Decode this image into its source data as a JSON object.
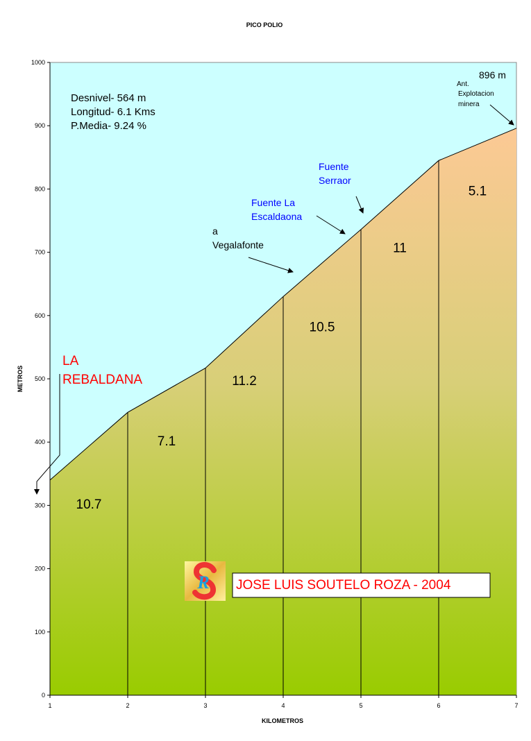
{
  "chart_data": {
    "type": "area",
    "title": "PICO POLIO",
    "xlabel": "KILOMETROS",
    "ylabel": "METROS",
    "xlim": [
      1,
      7
    ],
    "ylim": [
      0,
      1000
    ],
    "x_ticks": [
      "1",
      "2",
      "3",
      "4",
      "5",
      "6",
      "7"
    ],
    "y_ticks": [
      "0",
      "100",
      "200",
      "300",
      "400",
      "500",
      "600",
      "700",
      "800",
      "900",
      "1000"
    ],
    "x": [
      1,
      2,
      3,
      4,
      5,
      6,
      7
    ],
    "altitude": [
      340,
      447,
      517,
      630,
      736,
      845,
      896
    ],
    "segment_gradients": [
      "10.7",
      "7.1",
      "11.2",
      "10.5",
      "11",
      "5.1"
    ],
    "gradient_label_altitudes": [
      295,
      395,
      490,
      575,
      700,
      790
    ],
    "grid": false,
    "summary": [
      "Desnivel- 564 m",
      "Longitud- 6.1 Kms",
      "P.Media- 9.24 %"
    ],
    "annotations": {
      "start": [
        "LA",
        "REBALDANA"
      ],
      "vegalafonte": [
        "a",
        "Vegalafonte"
      ],
      "escaldaona": [
        "Fuente La",
        "Escaldaona"
      ],
      "serraor": [
        "Fuente",
        "Serraor"
      ],
      "summit_alt": "896 m",
      "mina": [
        "Ant.",
        "Explotacion",
        "minera"
      ]
    },
    "credit": "JOSE LUIS SOUTELO ROZA - 2004",
    "logo_letters": "SR",
    "colors": {
      "sky": "#ccffff",
      "top": "#fcc995",
      "bottom": "#99cc00",
      "red": "#ff0000",
      "blue": "#0000ff"
    }
  }
}
